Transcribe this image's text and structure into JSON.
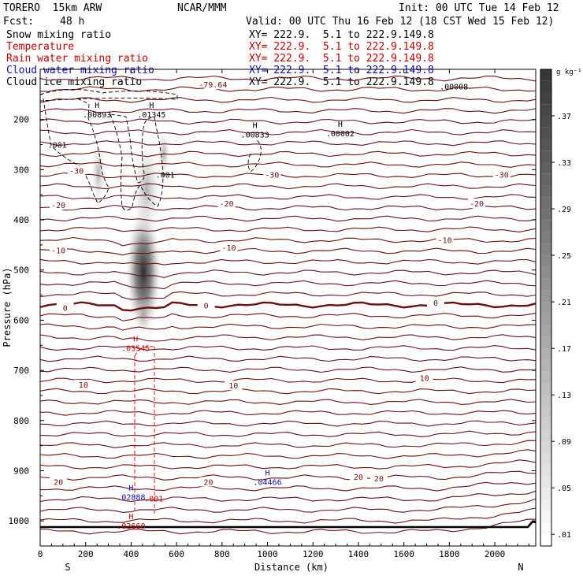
{
  "header": {
    "model": "TORERO  15km ARW",
    "center": "NCAR/MMM",
    "init": "Init: 00 UTC Tue 14 Feb 12",
    "fcst_label": "Fcst:",
    "fcst_value": "48 h",
    "valid": "Valid: 00 UTC Thu 16 Feb 12 (18 CST Wed 15 Feb 12)"
  },
  "fields": [
    {
      "name": "Snow mixing ratio",
      "color": "#000000",
      "xy": "XY= 222.9.  5.1 to 222.9.149.8"
    },
    {
      "name": "Temperature",
      "color": "#c00000",
      "xy": "XY= 222.9.  5.1 to 222.9.149.8"
    },
    {
      "name": "Rain water mixing ratio",
      "color": "#c00000",
      "xy": "XY= 222.9.  5.1 to 222.9.149.8"
    },
    {
      "name": "Cloud water mixing ratio",
      "color": "#1010b0",
      "xy": "XY= 222.9.  5.1 to 222.9.149.8"
    },
    {
      "name": "Cloud ice mixing ratio",
      "color": "#000000",
      "xy": "XY= 222.9.  5.1 to 222.9.149.8"
    }
  ],
  "chart_data": {
    "type": "cross-section contour",
    "xlabel": "Distance (km)",
    "ylabel": "Pressure (hPa)",
    "xlim": [
      0,
      2180
    ],
    "ylim": [
      1050,
      100
    ],
    "x_ticks": [
      0,
      200,
      400,
      600,
      800,
      1000,
      1200,
      1400,
      1600,
      1800,
      2000
    ],
    "x_tick_labels": [
      "0",
      "200",
      "400",
      "600",
      "800",
      "1000",
      "1200",
      "1400",
      "1600",
      "1800",
      "2000"
    ],
    "y_ticks": [
      200,
      300,
      400,
      500,
      600,
      700,
      800,
      900,
      1000
    ],
    "y_tick_labels": [
      "200",
      "300",
      "400",
      "500",
      "600",
      "700",
      "800",
      "900",
      "1000"
    ],
    "end_labels": {
      "left": "S",
      "right": "N"
    },
    "colorbar": {
      "unit_label": "g kg⁻¹",
      "tick_values": [
        0.01,
        0.05,
        0.09,
        0.13,
        0.17,
        0.21,
        0.25,
        0.29,
        0.33,
        0.37
      ],
      "tick_labels": [
        ".01",
        ".05",
        ".09",
        ".13",
        ".17",
        ".21",
        ".25",
        ".29",
        ".33",
        ".37"
      ]
    },
    "temperature_contour_labels": [
      {
        "text": "-79.64",
        "x": 760,
        "p": 130
      },
      {
        "text": "-30",
        "x": 160,
        "p": 302
      },
      {
        "text": "-30",
        "x": 1020,
        "p": 310
      },
      {
        "text": "-30",
        "x": 2030,
        "p": 310
      },
      {
        "text": "-20",
        "x": 80,
        "p": 370
      },
      {
        "text": "-20",
        "x": 820,
        "p": 367
      },
      {
        "text": "-20",
        "x": 1920,
        "p": 367
      },
      {
        "text": "-10",
        "x": 80,
        "p": 460
      },
      {
        "text": "-10",
        "x": 830,
        "p": 455
      },
      {
        "text": "-10",
        "x": 1780,
        "p": 440
      },
      {
        "text": "0",
        "x": 110,
        "p": 575
      },
      {
        "text": "0",
        "x": 730,
        "p": 570
      },
      {
        "text": "0",
        "x": 1740,
        "p": 565
      },
      {
        "text": "10",
        "x": 190,
        "p": 728
      },
      {
        "text": "10",
        "x": 850,
        "p": 730
      },
      {
        "text": "10",
        "x": 1690,
        "p": 715
      },
      {
        "text": "20",
        "x": 80,
        "p": 922
      },
      {
        "text": "20",
        "x": 740,
        "p": 922
      },
      {
        "text": "20",
        "x": 1400,
        "p": 912
      },
      {
        "text": "20",
        "x": 1490,
        "p": 915
      }
    ],
    "maxima": [
      {
        "mark": "H",
        "value": ".00893",
        "x": 250,
        "p": 193,
        "field": "snow"
      },
      {
        "mark": "H",
        "value": ".01345",
        "x": 490,
        "p": 193,
        "field": "snow"
      },
      {
        "mark": "H",
        "value": ".00833",
        "x": 945,
        "p": 233,
        "field": "snow"
      },
      {
        "mark": "H",
        "value": ".00002",
        "x": 1320,
        "p": 230,
        "field": "snow"
      },
      {
        "mark": "",
        "value": ".00008",
        "x": 1820,
        "p": 137,
        "field": "snow"
      },
      {
        "mark": "H",
        "value": ".03545",
        "x": 420,
        "p": 658,
        "field": "rain"
      },
      {
        "mark": "H",
        "value": ".02888",
        "x": 400,
        "p": 955,
        "field": "cloud_water"
      },
      {
        "mark": "H",
        "value": ".04466",
        "x": 1000,
        "p": 925,
        "field": "cloud_water"
      },
      {
        "mark": "H",
        "value": ".02660",
        "x": 400,
        "p": 1012,
        "field": "rain"
      }
    ],
    "contour_value_labels": [
      {
        "text": ".001",
        "x": 75,
        "p": 250,
        "field": "snow"
      },
      {
        "text": ".001",
        "x": 550,
        "p": 310,
        "field": "snow"
      },
      {
        "text": ".001",
        "x": 500,
        "p": 955,
        "field": "rain"
      }
    ]
  }
}
